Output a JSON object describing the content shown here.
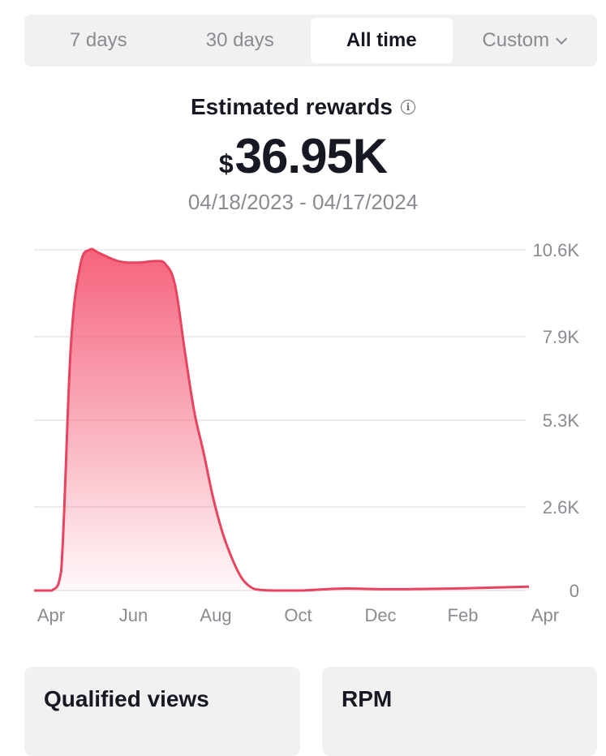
{
  "tabs": [
    {
      "label": "7 days"
    },
    {
      "label": "30 days"
    },
    {
      "label": "All time"
    },
    {
      "label": "Custom"
    }
  ],
  "summary": {
    "title": "Estimated rewards",
    "currency": "$",
    "value": "36.95K",
    "date_range": "04/18/2023 - 04/17/2024"
  },
  "colors": {
    "line": "#e8445f",
    "fill_top": "#f45b76",
    "grid": "#e6e6e8",
    "axis_text": "#8a8b91"
  },
  "chart_data": {
    "type": "area",
    "title": "",
    "xlabel": "",
    "ylabel": "",
    "x_tick_labels": [
      "Apr",
      "Jun",
      "Aug",
      "Oct",
      "Dec",
      "Feb",
      "Apr"
    ],
    "y_tick_labels": [
      "10.6K",
      "7.9K",
      "5.3K",
      "2.6K",
      "0"
    ],
    "y_ticks": [
      10600,
      7900,
      5300,
      2600,
      0
    ],
    "ylim": [
      0,
      10600
    ],
    "grid": true,
    "y_axis_side": "right",
    "series": [
      {
        "x": [
          "2023-04-18",
          "2023-05-01",
          "2023-05-08",
          "2023-05-15",
          "2023-05-22",
          "2023-05-29",
          "2023-06-05",
          "2023-06-19",
          "2023-07-03",
          "2023-07-17",
          "2023-07-24",
          "2023-07-31",
          "2023-08-07",
          "2023-08-14",
          "2023-08-21",
          "2023-08-28",
          "2023-09-04",
          "2023-09-11",
          "2023-09-18",
          "2023-09-25",
          "2023-10-02",
          "2023-10-16",
          "2023-11-01",
          "2023-12-01",
          "2024-01-01",
          "2024-02-01",
          "2024-03-01",
          "2024-04-17"
        ],
        "y": [
          0,
          0,
          600,
          7500,
          10100,
          10600,
          10500,
          10250,
          10200,
          10250,
          10150,
          9500,
          7500,
          5600,
          4300,
          2900,
          1800,
          1000,
          400,
          100,
          20,
          0,
          0,
          60,
          40,
          50,
          70,
          120
        ]
      }
    ]
  },
  "cards": [
    {
      "label": "Qualified views"
    },
    {
      "label": "RPM"
    }
  ]
}
